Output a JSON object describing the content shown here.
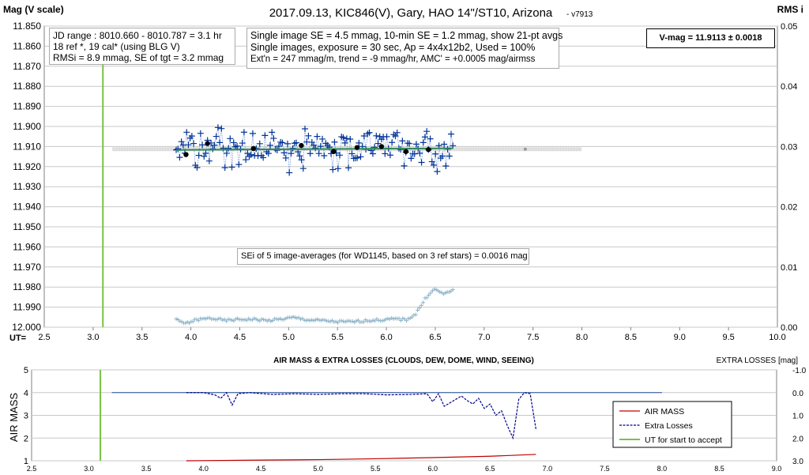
{
  "chart_data": [
    {
      "type": "scatter",
      "title": "2017.09.13,  KIC846(V),  Gary,  HAO 14\"/ST10, Arizona",
      "version": "- v7913",
      "ylabel_left": "Mag (V scale)",
      "ylabel_right": "RMS i",
      "xlabel": "UT=",
      "xlim": [
        2.5,
        10.0
      ],
      "ylim": [
        11.85,
        12.0
      ],
      "y_inverted": true,
      "right_ylim": [
        0,
        0.05
      ],
      "x_ticks": [
        "2.5",
        "3.0",
        "3.5",
        "4.0",
        "4.5",
        "5.0",
        "5.5",
        "6.0",
        "6.5",
        "7.0",
        "7.5",
        "8.0",
        "8.5",
        "9.0",
        "9.5",
        "10.0"
      ],
      "y_ticks": [
        "11.850",
        "11.860",
        "11.870",
        "11.880",
        "11.890",
        "11.900",
        "11.910",
        "11.920",
        "11.930",
        "11.940",
        "11.950",
        "11.960",
        "11.970",
        "11.980",
        "11.990",
        "12.000"
      ],
      "right_ticks": [
        "0.05",
        "0.04",
        "0.03",
        "0.02",
        "0.01",
        "0.00"
      ],
      "ut_start_accept": 3.1,
      "reference_line": {
        "x": [
          3.2,
          8.0
        ],
        "y": 11.9113,
        "marker_x": 7.42
      },
      "fit_line": {
        "x": [
          3.85,
          6.68
        ],
        "y_start": 11.9117,
        "y_end": 11.9109
      },
      "series": [
        {
          "role": "single-images",
          "x_start": 3.85,
          "x_end": 6.68,
          "count": 160,
          "mean": 11.9113,
          "scatter": 0.0048
        },
        {
          "role": "21pt-averages",
          "x": [
            3.95,
            4.17,
            4.64,
            5.13,
            5.46,
            5.7,
            5.95,
            6.2,
            6.43
          ],
          "y": [
            11.914,
            11.9085,
            11.911,
            11.9095,
            11.9125,
            11.9105,
            11.91,
            11.9125,
            11.9115
          ]
        },
        {
          "role": "rms-i",
          "x": [
            3.85,
            3.95,
            4.05,
            4.2,
            4.35,
            4.5,
            4.65,
            4.8,
            4.95,
            5.05,
            5.2,
            5.35,
            5.5,
            5.65,
            5.8,
            5.95,
            6.1,
            6.2,
            6.3,
            6.35,
            6.4,
            6.45,
            6.5,
            6.55,
            6.6,
            6.68
          ],
          "y": [
            0.0012,
            0.0006,
            0.0012,
            0.0015,
            0.0011,
            0.0013,
            0.0013,
            0.0011,
            0.0014,
            0.0016,
            0.0012,
            0.0011,
            0.0009,
            0.0009,
            0.0011,
            0.0012,
            0.0014,
            0.0012,
            0.0022,
            0.0035,
            0.0048,
            0.0058,
            0.0063,
            0.0058,
            0.0055,
            0.0063
          ]
        }
      ],
      "info_box_1": [
        "JD range : 8010.660 - 8010.787 =  3.1 hr",
        "18 ref *, 19 cal* (using BLG V)",
        "RMSi = 8.9 mmag, SE of tgt = 3.2 mmag"
      ],
      "info_box_2": [
        "Single image SE = 4.5 mmag, 10-min SE = 1.2 mmag, show 21-pt avgs",
        "Single images, exposure = 30 sec, Ap = 4x4x12b2, Used = 100%",
        "Ext'n = 247 mmag/m, trend = -9 mmag/hr, AMC' = +0.0005 mag/airmss"
      ],
      "vmag_box": "V-mag = 11.9113 ± 0.0018",
      "sei_box": "SEi of 5 image-averages (for WD1145, based on 3 ref stars) = 0.0016 mag"
    },
    {
      "type": "line",
      "title": "AIR MASS & EXTRA LOSSES (CLOUDS, DEW, DOME, WIND, SEEING)",
      "ylabel_left": "AIR MASS",
      "ylabel_right": "EXTRA LOSSES [mag]",
      "xlim": [
        2.5,
        9.0
      ],
      "ylim": [
        1,
        5
      ],
      "right_ylim": [
        -1.0,
        3.0
      ],
      "x_ticks": [
        "2.5",
        "3.0",
        "3.5",
        "4.0",
        "4.5",
        "5.0",
        "5.5",
        "6.0",
        "6.5",
        "7.0",
        "7.5",
        "8.0",
        "8.5",
        "9.0"
      ],
      "y_ticks": [
        "5",
        "4",
        "3",
        "2",
        "1"
      ],
      "right_ticks": [
        "-1.0",
        "0.0",
        "1.0",
        "2.0",
        "3.0"
      ],
      "legend": [
        "AIR MASS",
        "Extra Losses",
        "UT for start to accept"
      ],
      "legend_placement": "right",
      "ut_start_accept": 3.1,
      "zero_loss_line": {
        "x": [
          3.2,
          8.0
        ],
        "value": 0.0
      },
      "series": [
        {
          "name": "AIR MASS",
          "color": "#c00000",
          "x": [
            3.85,
            4.5,
            5.0,
            5.5,
            6.0,
            6.5,
            6.9
          ],
          "y": [
            1.0,
            1.03,
            1.05,
            1.09,
            1.14,
            1.2,
            1.28
          ]
        },
        {
          "name": "Extra Losses",
          "color": "#00008b",
          "x": [
            3.85,
            4.0,
            4.1,
            4.15,
            4.2,
            4.25,
            4.3,
            4.4,
            4.6,
            4.8,
            5.0,
            5.2,
            5.4,
            5.6,
            5.8,
            5.95,
            6.0,
            6.05,
            6.1,
            6.2,
            6.25,
            6.3,
            6.35,
            6.4,
            6.45,
            6.5,
            6.55,
            6.6,
            6.65,
            6.7,
            6.75,
            6.8,
            6.85,
            6.9
          ],
          "y": [
            0.0,
            0.0,
            0.1,
            0.25,
            0.0,
            0.55,
            0.05,
            0.0,
            0.08,
            0.05,
            0.08,
            0.05,
            0.05,
            0.1,
            0.08,
            0.05,
            0.4,
            0.05,
            0.6,
            0.3,
            0.15,
            0.35,
            0.5,
            0.25,
            0.7,
            0.5,
            1.0,
            0.8,
            1.45,
            2.0,
            0.3,
            0.0,
            0.05,
            1.6
          ]
        }
      ]
    }
  ],
  "colors": {
    "grid": "#c8c8c8",
    "accept_line": "#7ac143",
    "reference_line": "#c0c0c0",
    "fit_line": "#2e8b57",
    "single_images": "#003399",
    "averages": "#000000",
    "rms": "#8db3c8"
  }
}
